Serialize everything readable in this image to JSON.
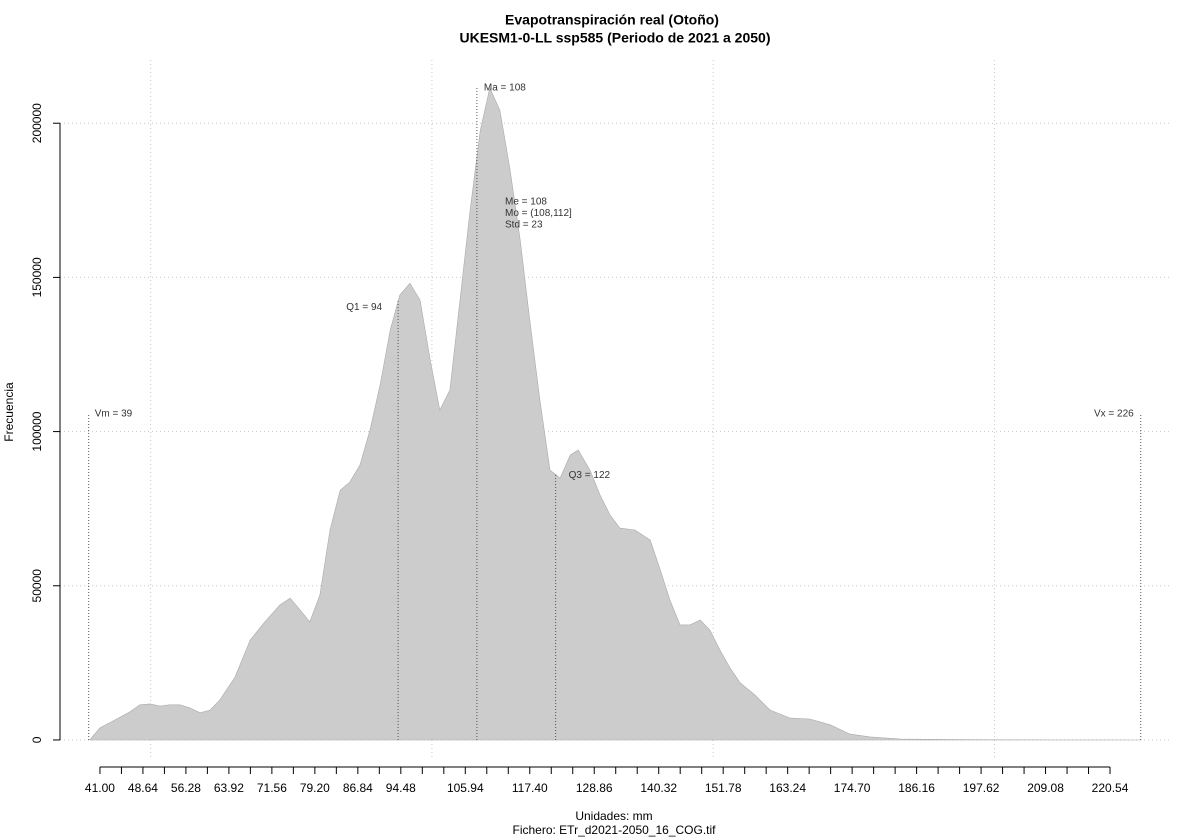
{
  "chart_data": {
    "type": "area",
    "title": "Evapotranspiración real (Otoño)",
    "subtitle": "UKESM1-0-LL ssp585 (Periodo de 2021 a 2050)",
    "x_label": "Unidades: mm",
    "footer": "Fichero: ETr_d2021-2050_16_COG.tif",
    "y_label": "Frecuencia",
    "color": "#cccccc",
    "x": [
      39.2,
      41.0,
      43.7,
      46.3,
      48.1,
      49.9,
      51.7,
      53.4,
      55.2,
      57.0,
      58.8,
      60.6,
      62.3,
      65.0,
      67.7,
      70.3,
      73.0,
      74.8,
      76.6,
      78.3,
      80.1,
      81.9,
      83.7,
      85.4,
      87.2,
      89.0,
      90.8,
      92.6,
      94.3,
      96.1,
      97.9,
      99.7,
      101.4,
      103.2,
      105.0,
      106.8,
      108.6,
      110.3,
      112.1,
      113.9,
      115.7,
      117.4,
      119.2,
      121.0,
      122.8,
      124.6,
      126.0,
      128.1,
      129.9,
      131.7,
      133.4,
      136.1,
      138.8,
      140.6,
      142.3,
      144.1,
      145.9,
      147.7,
      149.4,
      151.2,
      153.0,
      154.8,
      157.4,
      160.1,
      163.7,
      167.2,
      170.8,
      174.3,
      177.9,
      183.2,
      192.1,
      201.0,
      209.9,
      218.8,
      226.0
    ],
    "values": [
      0,
      3900,
      6500,
      9100,
      11400,
      11700,
      11000,
      11400,
      11400,
      10400,
      8800,
      9700,
      13000,
      20400,
      32400,
      38300,
      43800,
      46000,
      42100,
      38300,
      47000,
      68100,
      81000,
      83600,
      89100,
      100500,
      115100,
      132900,
      144300,
      148100,
      142600,
      123200,
      107000,
      113500,
      142600,
      171800,
      197700,
      211400,
      204200,
      184800,
      162100,
      136100,
      110200,
      87500,
      84900,
      92400,
      94000,
      87500,
      79400,
      72900,
      68700,
      68100,
      64800,
      55100,
      45400,
      37300,
      37300,
      38900,
      35700,
      29200,
      23300,
      18500,
      14600,
      9700,
      7100,
      6800,
      4900,
      1900,
      1000,
      300,
      100,
      50,
      20,
      10,
      0
    ],
    "xlim": [
      33.9,
      231.2
    ],
    "ylim": [
      -6500,
      220500
    ],
    "yticks": [
      0,
      50000,
      100000,
      150000,
      200000
    ],
    "xticks": [
      {
        "value": 41,
        "label": "41.00"
      },
      {
        "value": 48.64,
        "label": "48.64"
      },
      {
        "value": 56.28,
        "label": "56.28"
      },
      {
        "value": 63.92,
        "label": "63.92"
      },
      {
        "value": 71.56,
        "label": "71.56"
      },
      {
        "value": 79.2,
        "label": "79.20"
      },
      {
        "value": 86.84,
        "label": "86.84"
      },
      {
        "value": 94.48,
        "label": "94.48"
      },
      {
        "value": 105.94,
        "label": "105.94"
      },
      {
        "value": 117.4,
        "label": "117.40"
      },
      {
        "value": 128.86,
        "label": "128.86"
      },
      {
        "value": 140.32,
        "label": "140.32"
      },
      {
        "value": 151.78,
        "label": "151.78"
      },
      {
        "value": 163.24,
        "label": "163.24"
      },
      {
        "value": 174.7,
        "label": "174.70"
      },
      {
        "value": 186.16,
        "label": "186.16"
      },
      {
        "value": 197.62,
        "label": "197.62"
      },
      {
        "value": 209.08,
        "label": "209.08"
      },
      {
        "value": 220.54,
        "label": "220.54"
      }
    ],
    "xminor_ticks": [
      44.82,
      52.46,
      60.1,
      67.74,
      75.38,
      83.02,
      90.66,
      98.3,
      102.12,
      109.76,
      113.58,
      121.22,
      125.04,
      132.68,
      136.5,
      144.14,
      147.96,
      155.6,
      159.42,
      167.06,
      170.88,
      178.52,
      182.34,
      189.98,
      193.8,
      201.44,
      205.26,
      212.9,
      216.72
    ],
    "xgrid": [
      50,
      100,
      150,
      200
    ],
    "grid": true,
    "annotations": [
      {
        "text": "Vm = 39",
        "x": 39
      },
      {
        "text": "Q1 = 94",
        "x": 94
      },
      {
        "text": "Ma = 108",
        "x": 108
      },
      {
        "text": "Q3 = 122",
        "x": 122
      },
      {
        "text": "Vx = 226",
        "x": 226
      }
    ],
    "stats": [
      "Me = 108",
      "Mo = (108,112]",
      "Std = 23"
    ]
  }
}
